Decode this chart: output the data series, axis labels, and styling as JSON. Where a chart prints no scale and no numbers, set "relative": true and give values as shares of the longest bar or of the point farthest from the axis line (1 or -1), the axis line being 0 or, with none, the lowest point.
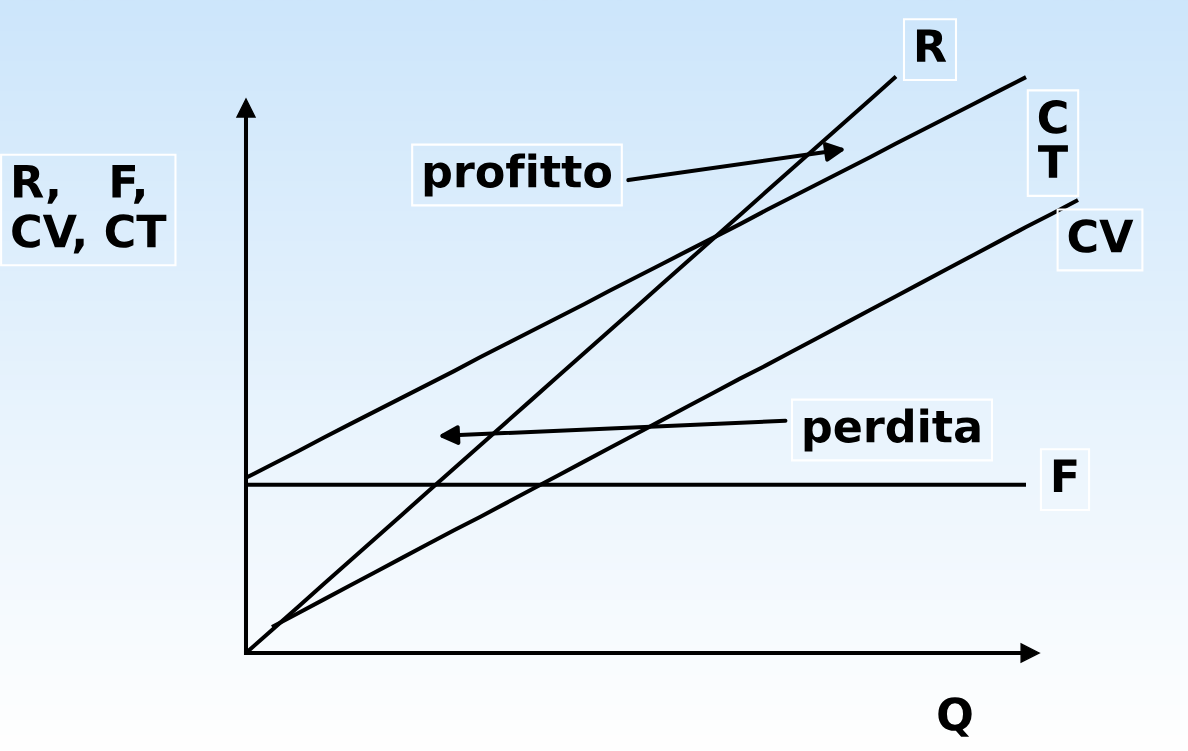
{
  "chart_data": {
    "type": "line",
    "relative": true,
    "categories": [
      null,
      null,
      null,
      null,
      null,
      null,
      null,
      null,
      null,
      null,
      null,
      null,
      null,
      null,
      null,
      null,
      null,
      null,
      null,
      null,
      null,
      null,
      null,
      null,
      null,
      null,
      null,
      null,
      null,
      null,
      null,
      null,
      null
    ],
    "series": [
      {
        "name": "R",
        "color": "#000000",
        "values": [
          0,
          0.04,
          0.08,
          0.12,
          0.16,
          0.2,
          0.24,
          0.28,
          0.32,
          0.36,
          0.4,
          0.44,
          0.48,
          0.52,
          0.56,
          0.6,
          0.64,
          0.68,
          0.72,
          0.76,
          0.8,
          0.84,
          0.88,
          0.92,
          0.96,
          1.0,
          null,
          null,
          null,
          null,
          null,
          null,
          null
        ]
      },
      {
        "name": "C\nT",
        "color": "#000000",
        "values": [
          0.304,
          0.327,
          0.35,
          0.374,
          0.397,
          0.42,
          0.443,
          0.466,
          0.489,
          0.513,
          0.536,
          0.559,
          0.582,
          0.605,
          0.629,
          0.652,
          0.675,
          0.698,
          0.721,
          0.744,
          0.768,
          0.791,
          0.814,
          0.837,
          0.86,
          0.884,
          0.907,
          0.93,
          0.953,
          0.976,
          0.999,
          null,
          null
        ]
      },
      {
        "name": "CV",
        "color": "#000000",
        "values": [
          null,
          0.045,
          0.069,
          0.093,
          0.117,
          0.141,
          0.165,
          0.189,
          0.213,
          0.236,
          0.26,
          0.284,
          0.308,
          0.332,
          0.356,
          0.38,
          0.404,
          0.428,
          0.452,
          0.476,
          0.499,
          0.523,
          0.547,
          0.571,
          0.595,
          0.619,
          0.643,
          0.667,
          0.691,
          0.715,
          0.739,
          0.762,
          0.786
        ]
      },
      {
        "name": "F",
        "color": "#000000",
        "values": [
          0.292,
          0.292,
          0.292,
          0.292,
          0.292,
          0.292,
          0.292,
          0.292,
          0.292,
          0.292,
          0.292,
          0.292,
          0.292,
          0.292,
          0.292,
          0.292,
          0.292,
          0.292,
          0.292,
          0.292,
          0.292,
          0.292,
          0.292,
          0.292,
          0.292,
          0.292,
          0.292,
          0.292,
          0.292,
          0.292,
          0.292,
          null,
          null
        ]
      }
    ],
    "xlabel": "Q",
    "ylabel": "R,   F,\nCV, CT",
    "annotations": [
      "profitto",
      "perdita"
    ]
  }
}
